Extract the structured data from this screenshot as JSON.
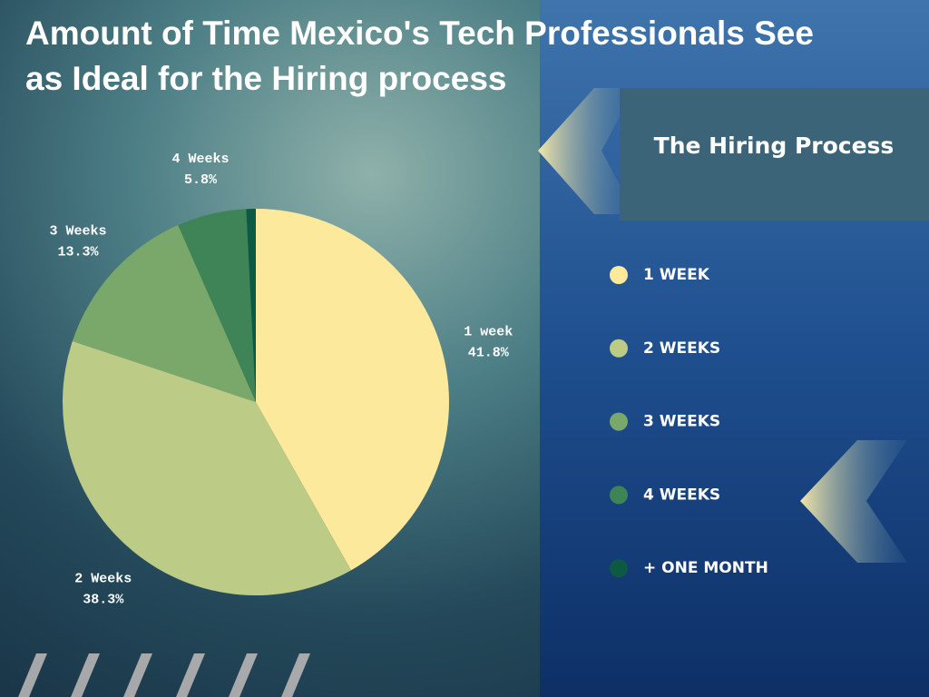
{
  "chart_data": {
    "type": "pie",
    "title": "Amount of Time Mexico's Tech Professionals See as Ideal for the Hiring process",
    "panel_title": "The Hiring Process",
    "categories": [
      "1 week",
      "2 Weeks",
      "3 Weeks",
      "4 Weeks",
      null
    ],
    "values": [
      41.8,
      38.3,
      13.3,
      5.8,
      0.8
    ],
    "value_labels": [
      "41.8%",
      "38.3%",
      "13.3%",
      "5.8%",
      null
    ],
    "colors": [
      "#fde99c",
      "#bccb85",
      "#7aa86a",
      "#3f8456",
      "#0c5a43"
    ],
    "legend": [
      "1 WEEK",
      "2 WEEKS",
      "3 WEEKS",
      "4 WEEKS",
      "+ ONE MONTH"
    ]
  }
}
